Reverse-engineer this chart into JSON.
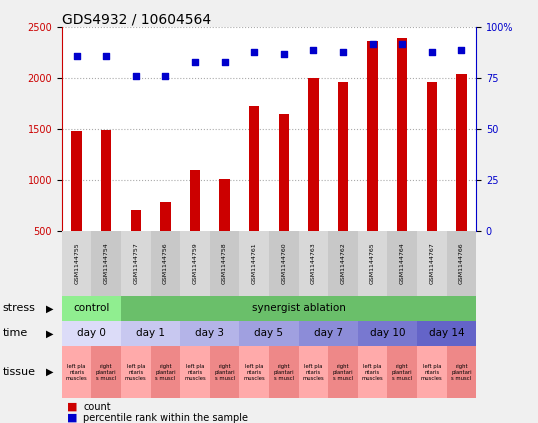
{
  "title": "GDS4932 / 10604564",
  "samples": [
    "GSM1144755",
    "GSM1144754",
    "GSM1144757",
    "GSM1144756",
    "GSM1144759",
    "GSM1144758",
    "GSM1144761",
    "GSM1144760",
    "GSM1144763",
    "GSM1144762",
    "GSM1144765",
    "GSM1144764",
    "GSM1144767",
    "GSM1144766"
  ],
  "counts": [
    1480,
    1490,
    700,
    780,
    1100,
    1010,
    1730,
    1650,
    2000,
    1960,
    2370,
    2400,
    1960,
    2040
  ],
  "percentiles": [
    86,
    86,
    76,
    76,
    83,
    83,
    88,
    87,
    89,
    88,
    92,
    92,
    88,
    89
  ],
  "ylim_left": [
    500,
    2500
  ],
  "ylim_right": [
    0,
    100
  ],
  "yticks_left": [
    500,
    1000,
    1500,
    2000,
    2500
  ],
  "yticks_right": [
    0,
    25,
    50,
    75,
    100
  ],
  "bar_color": "#cc0000",
  "dot_color": "#0000cc",
  "bg_color": "#f0f0f0",
  "plot_bg": "#ffffff",
  "stress_row": {
    "label": "stress",
    "segments": [
      {
        "text": "control",
        "span": [
          0,
          2
        ],
        "color": "#90ee90"
      },
      {
        "text": "synergist ablation",
        "span": [
          2,
          14
        ],
        "color": "#6abf6a"
      }
    ]
  },
  "time_row": {
    "label": "time",
    "segments": [
      {
        "text": "day 0",
        "span": [
          0,
          2
        ],
        "color": "#dcdcf8"
      },
      {
        "text": "day 1",
        "span": [
          2,
          4
        ],
        "color": "#c8c8f0"
      },
      {
        "text": "day 3",
        "span": [
          4,
          6
        ],
        "color": "#b4b4e8"
      },
      {
        "text": "day 5",
        "span": [
          6,
          8
        ],
        "color": "#a0a0e0"
      },
      {
        "text": "day 7",
        "span": [
          8,
          10
        ],
        "color": "#8c8cd8"
      },
      {
        "text": "day 10",
        "span": [
          10,
          12
        ],
        "color": "#7878d0"
      },
      {
        "text": "day 14",
        "span": [
          12,
          14
        ],
        "color": "#6464c8"
      }
    ]
  },
  "tissue_left_color": "#ffaaaa",
  "tissue_right_color": "#ee8888",
  "legend_count_color": "#cc0000",
  "legend_pct_color": "#0000cc",
  "dotted_line_color": "#aaaaaa",
  "sample_box_colors": [
    "#d8d8d8",
    "#c8c8c8"
  ],
  "title_fontsize": 10,
  "tick_fontsize": 7,
  "label_fontsize": 8
}
